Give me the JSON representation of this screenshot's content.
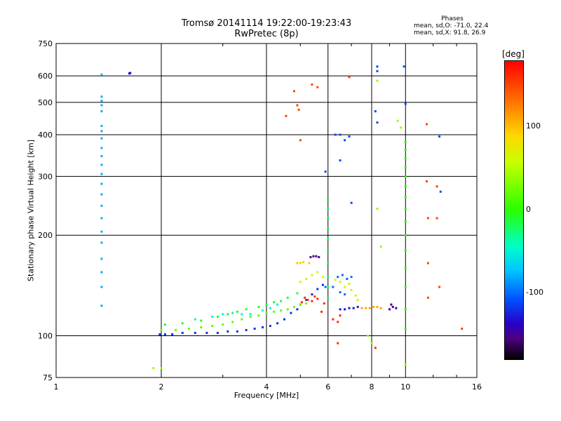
{
  "title_line1": "Tromsø 20141114 19:22:00-19:23:43",
  "title_line2": "RwPretec (8p)",
  "phases": {
    "heading": "Phases",
    "line1": "mean, sd,O: -71.0, 22.4",
    "line2": "mean, sd,X:  91.8, 26.9"
  },
  "colorbar": {
    "unit": "[deg]",
    "ticks": [
      "100",
      "0",
      "-100"
    ],
    "tick_values": [
      100,
      0,
      -100
    ],
    "range": [
      -180,
      180
    ]
  },
  "chart_data": {
    "type": "scatter",
    "xlabel": "Frequency [MHz]",
    "ylabel": "Stationary phase Virtual Height [km]",
    "xscale": "log",
    "yscale": "log",
    "xlim": [
      1,
      16
    ],
    "ylim": [
      75,
      750
    ],
    "x_ticks": [
      1,
      2,
      4,
      6,
      8,
      10,
      16
    ],
    "x_tick_labels": [
      "1",
      "2",
      "4",
      "6",
      "8",
      "10",
      "16"
    ],
    "y_ticks": [
      75,
      100,
      200,
      300,
      400,
      500,
      600,
      750
    ],
    "y_tick_labels": [
      "75",
      "100",
      "200",
      "300",
      "400",
      "500",
      "600",
      "750"
    ],
    "grid": true,
    "series": [
      {
        "points": [
          [
            1.98,
            101
          ],
          [
            2.05,
            101
          ],
          [
            2.15,
            101
          ],
          [
            2.3,
            102
          ],
          [
            2.5,
            102
          ],
          [
            2.7,
            102
          ],
          [
            2.9,
            102
          ],
          [
            3.1,
            103
          ],
          [
            3.3,
            103
          ],
          [
            3.5,
            104
          ],
          [
            3.7,
            105
          ],
          [
            3.9,
            106
          ],
          [
            4.1,
            107
          ],
          [
            4.3,
            109
          ],
          [
            4.5,
            112
          ],
          [
            4.7,
            117
          ],
          [
            4.9,
            120
          ],
          [
            5.0,
            124
          ],
          [
            5.2,
            128
          ],
          [
            5.4,
            133
          ],
          [
            5.6,
            138
          ],
          [
            5.8,
            142
          ]
        ],
        "phase": -120
      },
      {
        "points": [
          [
            2.0,
            104
          ],
          [
            2.2,
            104
          ],
          [
            2.4,
            105
          ],
          [
            2.6,
            106
          ],
          [
            2.8,
            107
          ],
          [
            3.0,
            108
          ],
          [
            3.2,
            110
          ],
          [
            3.4,
            112
          ],
          [
            3.6,
            114
          ],
          [
            3.8,
            115
          ],
          [
            4.0,
            117
          ],
          [
            4.2,
            118
          ],
          [
            4.4,
            119
          ],
          [
            4.6,
            120
          ],
          [
            4.8,
            122
          ],
          [
            5.0,
            124
          ],
          [
            5.2,
            125
          ]
        ],
        "phase": 20
      },
      {
        "points": [
          [
            2.05,
            108
          ],
          [
            2.3,
            109
          ],
          [
            2.6,
            111
          ],
          [
            2.9,
            114
          ],
          [
            3.1,
            116
          ],
          [
            3.3,
            118
          ],
          [
            3.5,
            120
          ],
          [
            3.8,
            122
          ],
          [
            4.0,
            124
          ],
          [
            4.2,
            126
          ],
          [
            4.4,
            127
          ],
          [
            4.6,
            130
          ],
          [
            4.9,
            134
          ]
        ],
        "phase": -10
      },
      {
        "points": [
          [
            2.5,
            112
          ],
          [
            2.8,
            114
          ],
          [
            3.0,
            116
          ],
          [
            3.2,
            117
          ],
          [
            3.4,
            116
          ],
          [
            3.6,
            116
          ],
          [
            3.9,
            119
          ],
          [
            4.1,
            121
          ],
          [
            4.3,
            124
          ]
        ],
        "phase": -50
      },
      {
        "points": [
          [
            1.35,
            123
          ],
          [
            1.35,
            140
          ],
          [
            1.35,
            155
          ],
          [
            1.35,
            170
          ],
          [
            1.35,
            190
          ],
          [
            1.35,
            205
          ],
          [
            1.35,
            225
          ],
          [
            1.35,
            245
          ],
          [
            1.35,
            265
          ],
          [
            1.35,
            285
          ],
          [
            1.35,
            305
          ],
          [
            1.35,
            325
          ],
          [
            1.35,
            345
          ],
          [
            1.35,
            365
          ],
          [
            1.35,
            390
          ],
          [
            1.35,
            410
          ],
          [
            1.35,
            425
          ],
          [
            1.35,
            470
          ],
          [
            1.35,
            490
          ],
          [
            1.35,
            505
          ],
          [
            1.35,
            520
          ],
          [
            1.35,
            605
          ]
        ],
        "phase": -80
      },
      {
        "points": [
          [
            1.62,
            610
          ],
          [
            1.63,
            612
          ]
        ],
        "phase": -140
      },
      {
        "points": [
          [
            4.9,
            165
          ],
          [
            5.0,
            165
          ],
          [
            5.1,
            166
          ],
          [
            5.3,
            165
          ]
        ],
        "phase": 95
      },
      {
        "points": [
          [
            5.35,
            172
          ],
          [
            5.45,
            173
          ],
          [
            5.55,
            173
          ],
          [
            5.65,
            172
          ]
        ],
        "phase": -155
      },
      {
        "points": [
          [
            6.5,
            120
          ],
          [
            6.7,
            120
          ],
          [
            6.9,
            121
          ],
          [
            7.1,
            121
          ],
          [
            7.3,
            122
          ]
        ],
        "phase": -130
      },
      {
        "points": [
          [
            7.5,
            121
          ],
          [
            7.7,
            121
          ],
          [
            7.9,
            121
          ],
          [
            8.1,
            122
          ],
          [
            8.3,
            122
          ],
          [
            8.5,
            121
          ]
        ],
        "phase": 110
      },
      {
        "points": [
          [
            6.0,
            255
          ],
          [
            6.0,
            240
          ],
          [
            6.0,
            225
          ],
          [
            6.0,
            210
          ],
          [
            6.0,
            195
          ],
          [
            6.0,
            180
          ],
          [
            6.0,
            165
          ],
          [
            6.0,
            150
          ],
          [
            6.0,
            140
          ],
          [
            6.0,
            130
          ]
        ],
        "phase": -20
      },
      {
        "points": [
          [
            10.0,
            380
          ],
          [
            10.0,
            360
          ],
          [
            10.0,
            340
          ],
          [
            10.0,
            320
          ],
          [
            10.0,
            300
          ],
          [
            10.0,
            280
          ],
          [
            10.0,
            260
          ],
          [
            10.0,
            240
          ],
          [
            10.0,
            220
          ],
          [
            10.0,
            200
          ],
          [
            10.0,
            180
          ],
          [
            10.0,
            160
          ],
          [
            10.0,
            140
          ],
          [
            10.0,
            120
          ],
          [
            10.0,
            105
          ]
        ],
        "phase": 0
      },
      {
        "points": [
          [
            4.8,
            540
          ],
          [
            4.9,
            490
          ],
          [
            4.95,
            475
          ],
          [
            5.0,
            385
          ],
          [
            4.55,
            455
          ],
          [
            5.4,
            565
          ],
          [
            5.6,
            555
          ],
          [
            6.9,
            595
          ],
          [
            11.5,
            430
          ],
          [
            11.5,
            290
          ],
          [
            11.6,
            225
          ],
          [
            11.6,
            165
          ],
          [
            12.5,
            140
          ],
          [
            12.3,
            280
          ],
          [
            12.3,
            225
          ],
          [
            11.6,
            130
          ],
          [
            14.5,
            105
          ]
        ],
        "phase": 150
      },
      {
        "points": [
          [
            6.3,
            400
          ],
          [
            6.5,
            400
          ],
          [
            6.7,
            385
          ],
          [
            6.9,
            395
          ],
          [
            6.5,
            335
          ],
          [
            5.9,
            310
          ],
          [
            7.0,
            250
          ],
          [
            8.3,
            640
          ],
          [
            8.3,
            620
          ],
          [
            8.2,
            470
          ],
          [
            8.3,
            435
          ],
          [
            9.9,
            640
          ],
          [
            10.0,
            495
          ],
          [
            12.5,
            395
          ],
          [
            12.6,
            270
          ]
        ],
        "phase": -110
      },
      {
        "points": [
          [
            9.0,
            120
          ],
          [
            9.2,
            122
          ],
          [
            9.4,
            121
          ],
          [
            9.1,
            124
          ]
        ],
        "phase": -150
      },
      {
        "points": [
          [
            5.05,
            126
          ],
          [
            5.15,
            130
          ],
          [
            5.25,
            128
          ],
          [
            5.4,
            127
          ],
          [
            5.5,
            131
          ],
          [
            5.6,
            129
          ],
          [
            5.75,
            118
          ],
          [
            5.85,
            125
          ],
          [
            6.2,
            112
          ],
          [
            6.4,
            110
          ],
          [
            6.5,
            115
          ],
          [
            8.2,
            92
          ],
          [
            6.4,
            95
          ]
        ],
        "phase": 160
      },
      {
        "points": [
          [
            5.0,
            145
          ],
          [
            5.2,
            148
          ],
          [
            5.4,
            152
          ],
          [
            5.6,
            155
          ],
          [
            5.8,
            150
          ],
          [
            6.3,
            147
          ],
          [
            6.5,
            145
          ],
          [
            6.7,
            140
          ],
          [
            6.9,
            143
          ],
          [
            7.0,
            137
          ],
          [
            7.2,
            132
          ],
          [
            7.3,
            128
          ]
        ],
        "phase": 70
      },
      {
        "points": [
          [
            6.4,
            150
          ],
          [
            6.6,
            152
          ],
          [
            6.8,
            148
          ],
          [
            7.0,
            150
          ],
          [
            6.2,
            140
          ],
          [
            6.5,
            135
          ],
          [
            6.7,
            133
          ],
          [
            5.9,
            140
          ]
        ],
        "phase": -100
      },
      {
        "points": [
          [
            1.9,
            80
          ],
          [
            2.0,
            80
          ],
          [
            10.0,
            82
          ],
          [
            8.3,
            580
          ],
          [
            8.5,
            185
          ],
          [
            8.3,
            240
          ],
          [
            9.5,
            440
          ],
          [
            9.7,
            420
          ],
          [
            7.8,
            100
          ],
          [
            8.0,
            95
          ]
        ],
        "phase": 40
      }
    ]
  }
}
